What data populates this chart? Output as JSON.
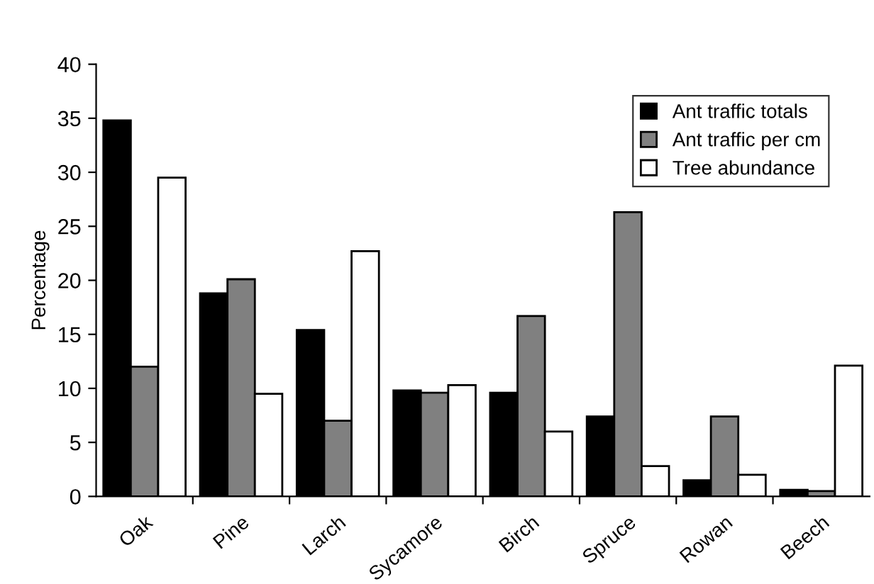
{
  "chart_data": {
    "type": "bar",
    "ylabel": "Percentage",
    "categories": [
      "Oak",
      "Pine",
      "Larch",
      "Sycamore",
      "Birch",
      "Spruce",
      "Rowan",
      "Beech"
    ],
    "series": [
      {
        "name": "Ant traffic totals",
        "color": "#000000",
        "values": [
          34.8,
          18.8,
          15.4,
          9.8,
          9.6,
          7.4,
          1.5,
          0.6
        ]
      },
      {
        "name": "Ant traffic per cm",
        "color": "#808080",
        "values": [
          12.0,
          20.1,
          7.0,
          9.6,
          16.7,
          26.3,
          7.4,
          0.5
        ]
      },
      {
        "name": "Tree abundance",
        "color": "#ffffff",
        "values": [
          29.5,
          9.5,
          22.7,
          10.3,
          6.0,
          2.8,
          2.0,
          12.1
        ]
      }
    ],
    "ylim": [
      0,
      40
    ],
    "yticks": [
      0,
      5,
      10,
      15,
      20,
      25,
      30,
      35,
      40
    ],
    "grid": false,
    "legend": "top right"
  }
}
